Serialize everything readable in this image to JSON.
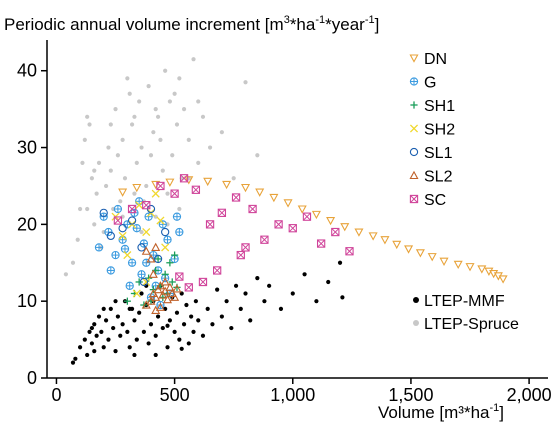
{
  "chart_data": {
    "type": "scatter",
    "title": "",
    "ylabel_main": "Periodic annual volume increment [m",
    "ylabel_sup1": "3",
    "ylabel_mid1": "*ha",
    "ylabel_sup2": "-1",
    "ylabel_mid2": "*year",
    "ylabel_sup3": "-1",
    "ylabel_end": "]",
    "xlabel_main": "Volume [m³*ha",
    "xlabel_sup": "-1",
    "xlabel_end": "]",
    "xlim": [
      -40,
      2080
    ],
    "ylim": [
      0,
      44
    ],
    "xticks": [
      0,
      500,
      1000,
      1500,
      2000
    ],
    "xtick_labels": [
      "0",
      "500",
      "1,000",
      "1,500",
      "2,000"
    ],
    "yticks": [
      0,
      10,
      20,
      30,
      40
    ],
    "ytick_labels": [
      "0",
      "10",
      "20",
      "30",
      "40"
    ],
    "grid": false,
    "legend_top": "top-right",
    "legend_bottom": "bottom-right",
    "series": [
      {
        "name": "LTEP-Spruce",
        "marker": "dot",
        "color": "#c8c8c8",
        "legend": "bottom",
        "points": [
          [
            40,
            13.5
          ],
          [
            70,
            15
          ],
          [
            90,
            18
          ],
          [
            100,
            22
          ],
          [
            110,
            28
          ],
          [
            120,
            31
          ],
          [
            130,
            34
          ],
          [
            140,
            33
          ],
          [
            150,
            26
          ],
          [
            160,
            20
          ],
          [
            170,
            24
          ],
          [
            180,
            28
          ],
          [
            190,
            17
          ],
          [
            200,
            19
          ],
          [
            210,
            25
          ],
          [
            220,
            30
          ],
          [
            230,
            27
          ],
          [
            240,
            22
          ],
          [
            250,
            35
          ],
          [
            260,
            29
          ],
          [
            270,
            23
          ],
          [
            280,
            31
          ],
          [
            290,
            26
          ],
          [
            300,
            39
          ],
          [
            310,
            37
          ],
          [
            320,
            33
          ],
          [
            330,
            24
          ],
          [
            340,
            28
          ],
          [
            350,
            36
          ],
          [
            360,
            30
          ],
          [
            370,
            23
          ],
          [
            380,
            25
          ],
          [
            390,
            38
          ],
          [
            400,
            29
          ],
          [
            410,
            32
          ],
          [
            420,
            21
          ],
          [
            430,
            34
          ],
          [
            440,
            31
          ],
          [
            450,
            27
          ],
          [
            460,
            40
          ],
          [
            470,
            24
          ],
          [
            480,
            36
          ],
          [
            490,
            29
          ],
          [
            500,
            37
          ],
          [
            510,
            33
          ],
          [
            520,
            22
          ],
          [
            530,
            26
          ],
          [
            540,
            35
          ],
          [
            560,
            31
          ],
          [
            580,
            41.5
          ],
          [
            600,
            28
          ],
          [
            620,
            34
          ],
          [
            650,
            30
          ],
          [
            700,
            32
          ],
          [
            750,
            26
          ],
          [
            800,
            38.5
          ],
          [
            850,
            29
          ],
          [
            130,
            22
          ],
          [
            160,
            27
          ],
          [
            230,
            33
          ],
          [
            280,
            21
          ],
          [
            330,
            34
          ],
          [
            360,
            19
          ],
          [
            420,
            35
          ],
          [
            470,
            20
          ],
          [
            520,
            39
          ],
          [
            560,
            26
          ],
          [
            600,
            36
          ]
        ]
      },
      {
        "name": "LTEP-MMF",
        "marker": "dot",
        "color": "#000000",
        "legend": "bottom",
        "points": [
          [
            70,
            2
          ],
          [
            80,
            2.5
          ],
          [
            100,
            4
          ],
          [
            120,
            5
          ],
          [
            130,
            3
          ],
          [
            140,
            6
          ],
          [
            150,
            4.5
          ],
          [
            160,
            7
          ],
          [
            170,
            5.5
          ],
          [
            180,
            8
          ],
          [
            190,
            6
          ],
          [
            200,
            4
          ],
          [
            210,
            7.5
          ],
          [
            220,
            5
          ],
          [
            230,
            9
          ],
          [
            240,
            6.5
          ],
          [
            250,
            3.5
          ],
          [
            260,
            8
          ],
          [
            270,
            5.5
          ],
          [
            280,
            7
          ],
          [
            290,
            10
          ],
          [
            300,
            6
          ],
          [
            310,
            4
          ],
          [
            320,
            9
          ],
          [
            330,
            7.5
          ],
          [
            340,
            5
          ],
          [
            350,
            8.5
          ],
          [
            360,
            11
          ],
          [
            370,
            6
          ],
          [
            380,
            9.5
          ],
          [
            390,
            4.5
          ],
          [
            400,
            7
          ],
          [
            410,
            10
          ],
          [
            420,
            5.5
          ],
          [
            430,
            8
          ],
          [
            440,
            12
          ],
          [
            450,
            6.5
          ],
          [
            460,
            9
          ],
          [
            470,
            4
          ],
          [
            480,
            7.5
          ],
          [
            490,
            10.5
          ],
          [
            500,
            6
          ],
          [
            510,
            8.5
          ],
          [
            520,
            5
          ],
          [
            530,
            11
          ],
          [
            540,
            7
          ],
          [
            550,
            9.5
          ],
          [
            560,
            4.5
          ],
          [
            570,
            8
          ],
          [
            580,
            6
          ],
          [
            590,
            10
          ],
          [
            600,
            7.5
          ],
          [
            620,
            5.5
          ],
          [
            640,
            9
          ],
          [
            660,
            7
          ],
          [
            680,
            11.5
          ],
          [
            700,
            8
          ],
          [
            720,
            10
          ],
          [
            740,
            6.5
          ],
          [
            760,
            12
          ],
          [
            780,
            9
          ],
          [
            800,
            11
          ],
          [
            820,
            7.5
          ],
          [
            850,
            13
          ],
          [
            880,
            10
          ],
          [
            900,
            12
          ],
          [
            950,
            9
          ],
          [
            1000,
            11
          ],
          [
            1050,
            13.5
          ],
          [
            1100,
            10
          ],
          [
            1150,
            12.5
          ],
          [
            1200,
            15
          ],
          [
            1210,
            10.5
          ],
          [
            250,
            10
          ],
          [
            310,
            9
          ],
          [
            380,
            12
          ],
          [
            420,
            3
          ],
          [
            470,
            6.8
          ],
          [
            530,
            3.8
          ],
          [
            330,
            3
          ],
          [
            160,
            3.5
          ],
          [
            200,
            9
          ],
          [
            150,
            6.5
          ]
        ]
      },
      {
        "name": "DN",
        "marker": "triangle-down",
        "color": "#e8a33a",
        "legend": "top",
        "points": [
          [
            280,
            24.2
          ],
          [
            340,
            24.8
          ],
          [
            420,
            25.2
          ],
          [
            480,
            25.5
          ],
          [
            560,
            25.8
          ],
          [
            640,
            25.6
          ],
          [
            720,
            25.2
          ],
          [
            800,
            24.8
          ],
          [
            860,
            24.2
          ],
          [
            920,
            23.5
          ],
          [
            980,
            22.8
          ],
          [
            1040,
            22
          ],
          [
            1100,
            21.3
          ],
          [
            1160,
            20.5
          ],
          [
            1220,
            19.7
          ],
          [
            1280,
            19
          ],
          [
            1340,
            18.5
          ],
          [
            1390,
            18
          ],
          [
            1440,
            17.4
          ],
          [
            1490,
            16.8
          ],
          [
            1540,
            16.3
          ],
          [
            1590,
            15.8
          ],
          [
            1640,
            15.2
          ],
          [
            1700,
            14.8
          ],
          [
            1750,
            14.5
          ],
          [
            1800,
            14.2
          ],
          [
            1830,
            13.9
          ],
          [
            1850,
            13.6
          ],
          [
            1870,
            13.3
          ],
          [
            1890,
            12.9
          ]
        ]
      },
      {
        "name": "G",
        "marker": "circle-plus",
        "color": "#3b9be0",
        "legend": "top",
        "points": [
          [
            180,
            17
          ],
          [
            200,
            21
          ],
          [
            220,
            19
          ],
          [
            250,
            16
          ],
          [
            260,
            22
          ],
          [
            280,
            18
          ],
          [
            300,
            20
          ],
          [
            320,
            15
          ],
          [
            340,
            19.5
          ],
          [
            350,
            23
          ],
          [
            370,
            17.5
          ],
          [
            390,
            21
          ],
          [
            410,
            16
          ],
          [
            420,
            12
          ],
          [
            430,
            14
          ],
          [
            450,
            20
          ],
          [
            460,
            13
          ],
          [
            470,
            18
          ],
          [
            480,
            11
          ],
          [
            500,
            15.5
          ],
          [
            510,
            21
          ],
          [
            230,
            14
          ],
          [
            310,
            12
          ],
          [
            360,
            13.5
          ],
          [
            400,
            10.5
          ],
          [
            440,
            9.5
          ],
          [
            520,
            19
          ],
          [
            290,
            16.8
          ],
          [
            380,
            15
          ],
          [
            330,
            21.5
          ]
        ]
      },
      {
        "name": "SH1",
        "marker": "plus",
        "color": "#1a9e5a",
        "legend": "top",
        "points": [
          [
            300,
            10
          ],
          [
            330,
            11
          ],
          [
            350,
            12.5
          ],
          [
            370,
            9.5
          ],
          [
            390,
            13
          ],
          [
            410,
            11.5
          ],
          [
            420,
            14
          ],
          [
            440,
            12
          ],
          [
            450,
            10.5
          ],
          [
            460,
            13.5
          ],
          [
            470,
            11
          ],
          [
            480,
            15
          ],
          [
            490,
            12.5
          ],
          [
            500,
            16
          ],
          [
            510,
            11.8
          ],
          [
            430,
            15.5
          ],
          [
            400,
            10
          ]
        ]
      },
      {
        "name": "SH2",
        "marker": "x",
        "color": "#f0d82e",
        "legend": "top",
        "points": [
          [
            250,
            21
          ],
          [
            280,
            18.5
          ],
          [
            320,
            20
          ],
          [
            350,
            22.5
          ],
          [
            380,
            19
          ],
          [
            400,
            21.5
          ],
          [
            420,
            24
          ],
          [
            440,
            20.5
          ],
          [
            380,
            12.5
          ],
          [
            340,
            11
          ],
          [
            460,
            17
          ],
          [
            300,
            16
          ]
        ]
      },
      {
        "name": "SL1",
        "marker": "circle",
        "color": "#1b5fb0",
        "legend": "top",
        "points": [
          [
            200,
            21.5
          ],
          [
            230,
            18.5
          ],
          [
            280,
            19.5
          ],
          [
            320,
            20.5
          ],
          [
            360,
            17
          ],
          [
            400,
            22
          ],
          [
            430,
            15.5
          ],
          [
            370,
            12.5
          ],
          [
            460,
            19
          ]
        ]
      },
      {
        "name": "SL2",
        "marker": "triangle-up",
        "color": "#c0612a",
        "legend": "top",
        "points": [
          [
            380,
            9.5
          ],
          [
            400,
            10
          ],
          [
            410,
            11
          ],
          [
            420,
            10.5
          ],
          [
            430,
            11.5
          ],
          [
            440,
            12
          ],
          [
            450,
            10.8
          ],
          [
            460,
            11.3
          ],
          [
            470,
            10.2
          ],
          [
            480,
            11.8
          ],
          [
            490,
            11
          ],
          [
            500,
            10.5
          ],
          [
            510,
            11.6
          ],
          [
            420,
            8.8
          ],
          [
            440,
            9.2
          ],
          [
            460,
            12.5
          ],
          [
            380,
            16.5
          ],
          [
            400,
            15.5
          ],
          [
            420,
            17
          ],
          [
            410,
            13.5
          ]
        ]
      },
      {
        "name": "SC",
        "marker": "square-x",
        "color": "#d0449a",
        "legend": "top",
        "points": [
          [
            260,
            20.5
          ],
          [
            320,
            22
          ],
          [
            380,
            22.5
          ],
          [
            440,
            25
          ],
          [
            500,
            24
          ],
          [
            540,
            26
          ],
          [
            590,
            24.5
          ],
          [
            650,
            20
          ],
          [
            700,
            21.5
          ],
          [
            760,
            23.5
          ],
          [
            800,
            17
          ],
          [
            830,
            22
          ],
          [
            880,
            18
          ],
          [
            940,
            20
          ],
          [
            1000,
            19.5
          ],
          [
            1060,
            21
          ],
          [
            1120,
            17.5
          ],
          [
            1180,
            19
          ],
          [
            1240,
            16.5
          ],
          [
            780,
            16
          ],
          [
            680,
            14
          ],
          [
            620,
            12.5
          ],
          [
            560,
            11.8
          ],
          [
            520,
            13.2
          ]
        ]
      }
    ]
  }
}
